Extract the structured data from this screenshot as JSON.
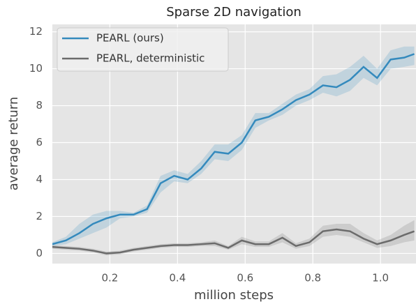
{
  "chart_data": {
    "type": "line",
    "title": "Sparse 2D navigation",
    "xlabel": "million steps",
    "ylabel": "average return",
    "x": [
      0.03,
      0.07,
      0.11,
      0.15,
      0.19,
      0.23,
      0.27,
      0.31,
      0.35,
      0.39,
      0.43,
      0.47,
      0.51,
      0.55,
      0.59,
      0.63,
      0.67,
      0.71,
      0.75,
      0.79,
      0.83,
      0.87,
      0.91,
      0.95,
      0.99,
      1.03,
      1.07,
      1.1
    ],
    "series": [
      {
        "name": "PEARL (ours)",
        "color": "#348abd",
        "values": [
          0.5,
          0.7,
          1.1,
          1.6,
          1.9,
          2.1,
          2.1,
          2.4,
          3.8,
          4.2,
          4.0,
          4.6,
          5.5,
          5.4,
          6.0,
          7.2,
          7.4,
          7.8,
          8.3,
          8.6,
          9.1,
          9.0,
          9.4,
          10.1,
          9.5,
          10.5,
          10.6,
          10.8
        ],
        "band_lower": [
          0.4,
          0.5,
          0.8,
          1.1,
          1.4,
          1.9,
          2.0,
          2.2,
          3.3,
          3.9,
          3.8,
          4.3,
          5.1,
          5.0,
          5.6,
          6.8,
          7.2,
          7.5,
          8.0,
          8.3,
          8.7,
          8.5,
          8.8,
          9.5,
          9.1,
          10.0,
          10.1,
          10.2
        ],
        "band_upper": [
          0.6,
          0.9,
          1.6,
          2.1,
          2.3,
          2.3,
          2.2,
          2.6,
          4.2,
          4.5,
          4.3,
          5.0,
          5.9,
          5.9,
          6.4,
          7.6,
          7.6,
          8.1,
          8.6,
          8.9,
          9.6,
          9.7,
          10.1,
          10.7,
          10.0,
          11.0,
          11.2,
          11.2
        ]
      },
      {
        "name": "PEARL, deterministic",
        "color": "#6b6b6b",
        "values": [
          0.35,
          0.3,
          0.25,
          0.15,
          0.0,
          0.05,
          0.2,
          0.3,
          0.4,
          0.45,
          0.45,
          0.5,
          0.55,
          0.3,
          0.7,
          0.5,
          0.5,
          0.85,
          0.4,
          0.6,
          1.2,
          1.3,
          1.2,
          0.8,
          0.5,
          0.7,
          1.0,
          1.2
        ],
        "band_lower": [
          0.25,
          0.2,
          0.15,
          0.05,
          -0.1,
          -0.05,
          0.1,
          0.2,
          0.3,
          0.35,
          0.35,
          0.4,
          0.4,
          0.2,
          0.5,
          0.35,
          0.35,
          0.6,
          0.25,
          0.4,
          0.9,
          1.0,
          0.9,
          0.6,
          0.3,
          0.4,
          0.6,
          0.7
        ],
        "band_upper": [
          0.45,
          0.4,
          0.35,
          0.25,
          0.1,
          0.15,
          0.3,
          0.4,
          0.5,
          0.55,
          0.55,
          0.6,
          0.7,
          0.4,
          0.9,
          0.65,
          0.65,
          1.1,
          0.55,
          0.8,
          1.5,
          1.6,
          1.6,
          1.1,
          0.7,
          1.0,
          1.5,
          1.8
        ]
      }
    ],
    "xlim": [
      0.03,
      1.105
    ],
    "ylim": [
      -0.55,
      12.4
    ],
    "xticks": [
      0.2,
      0.4,
      0.6,
      0.8,
      {
        "value": 1,
        "label": "1.0"
      }
    ],
    "yticks": [
      0,
      2,
      4,
      6,
      8,
      10,
      12
    ],
    "grid": true,
    "legend": "upper left"
  }
}
